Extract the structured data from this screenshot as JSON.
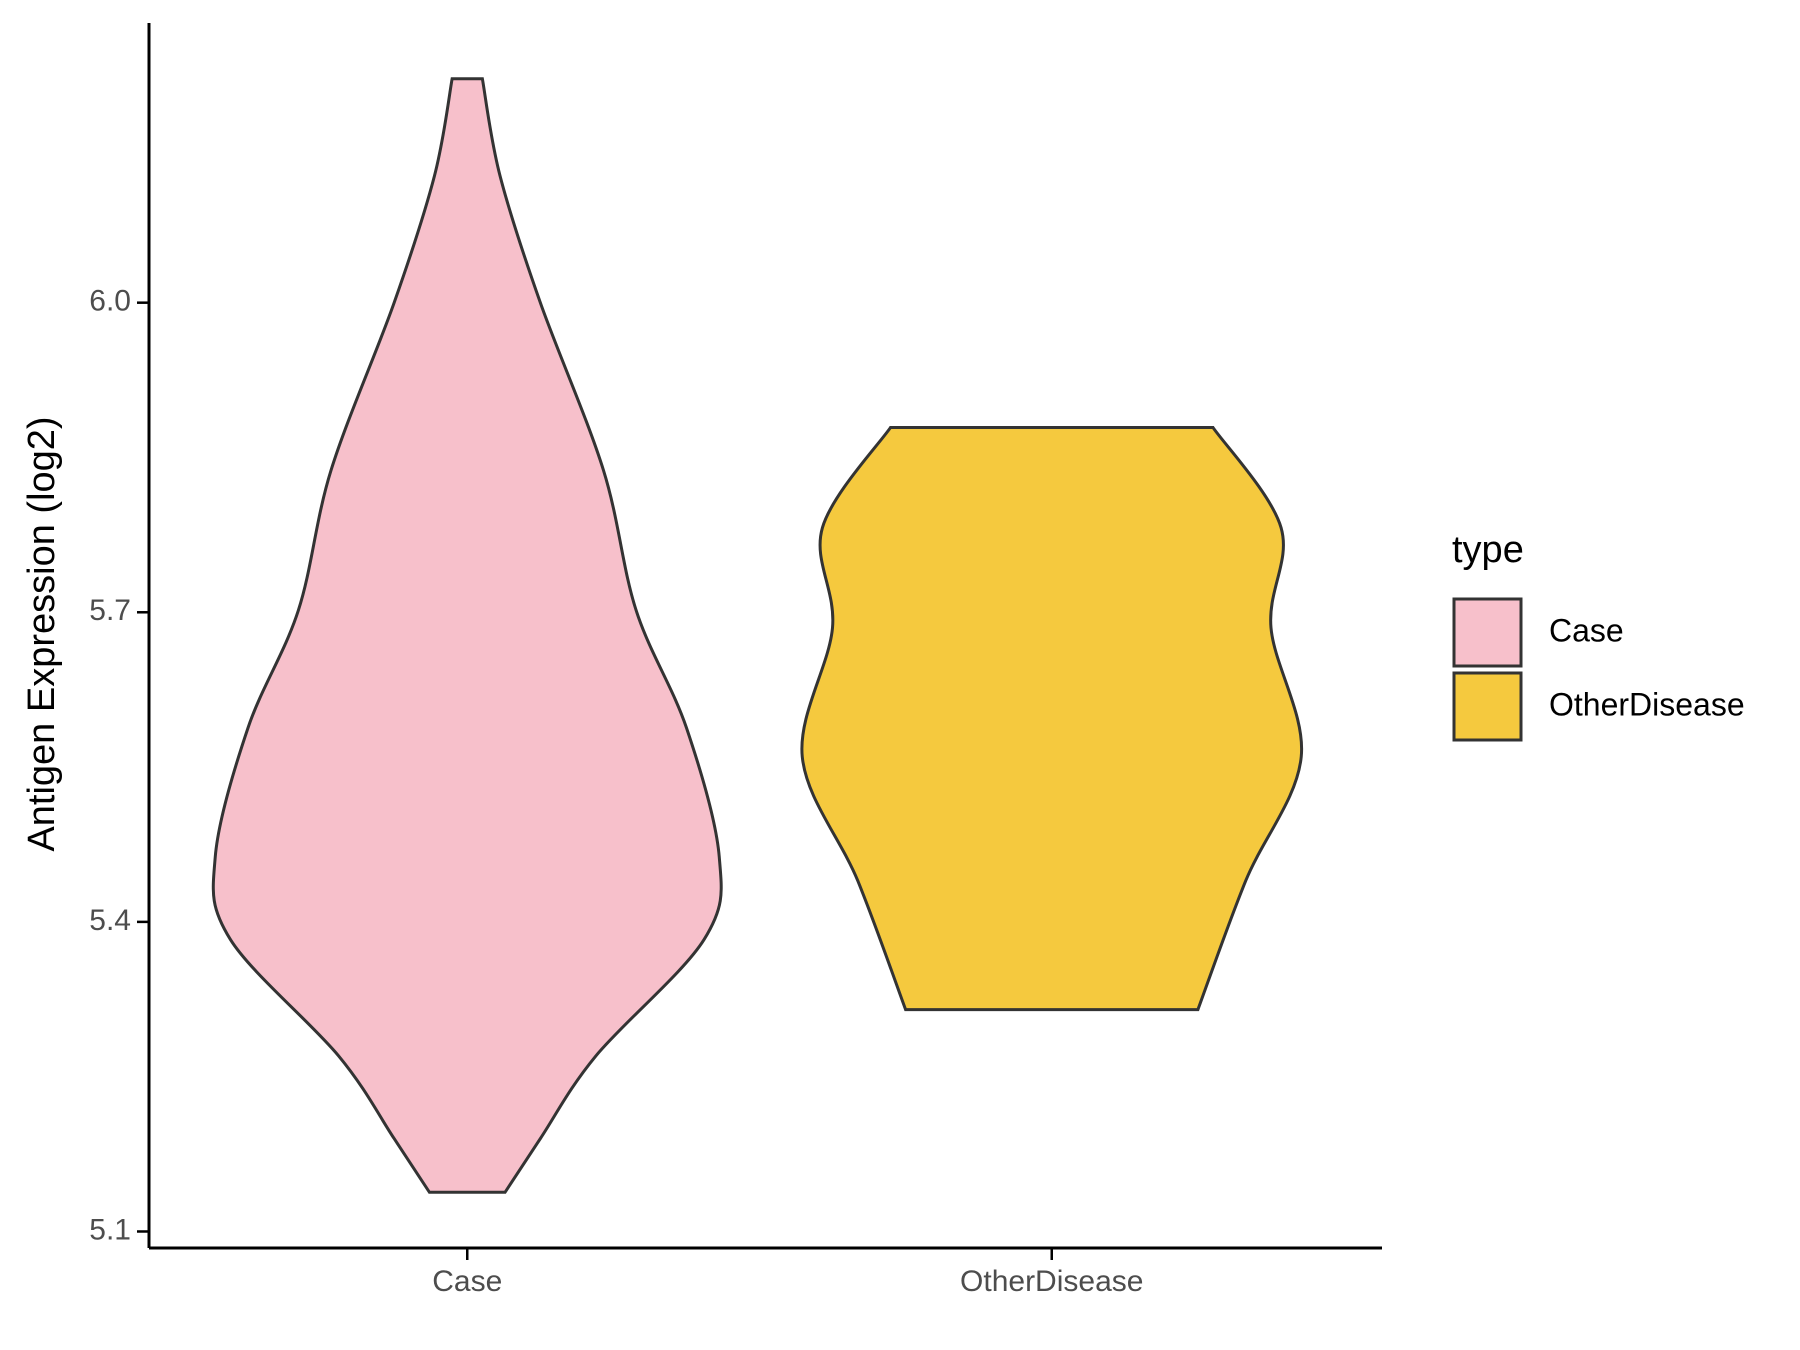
{
  "chart_data": {
    "type": "violin",
    "y_label": "Antigen Expression (log2)",
    "categories": [
      "Case",
      "OtherDisease"
    ],
    "series": [
      {
        "name": "Case",
        "color": "#f7c0cb",
        "y": [
          6.217,
          6.123,
          6.0,
          5.838,
          5.702,
          5.588,
          5.463,
          5.383,
          5.27,
          5.19,
          5.138
        ],
        "width": [
          0.06,
          0.13,
          0.29,
          0.54,
          0.67,
          0.87,
          1,
          0.94,
          0.51,
          0.29,
          0.15
        ]
      },
      {
        "name": "OtherDisease",
        "color": "#f5c93e",
        "y": [
          5.879,
          5.782,
          5.685,
          5.56,
          5.44,
          5.315
        ],
        "width": [
          0.64,
          0.91,
          0.87,
          0.99,
          0.77,
          0.58
        ]
      }
    ],
    "ylim": [
      5.084,
      6.271
    ],
    "yticks": [
      5.1,
      5.4,
      5.7,
      {
        "value": 6,
        "label": "6.0"
      }
    ],
    "legend_title": "type",
    "legend": "right"
  }
}
